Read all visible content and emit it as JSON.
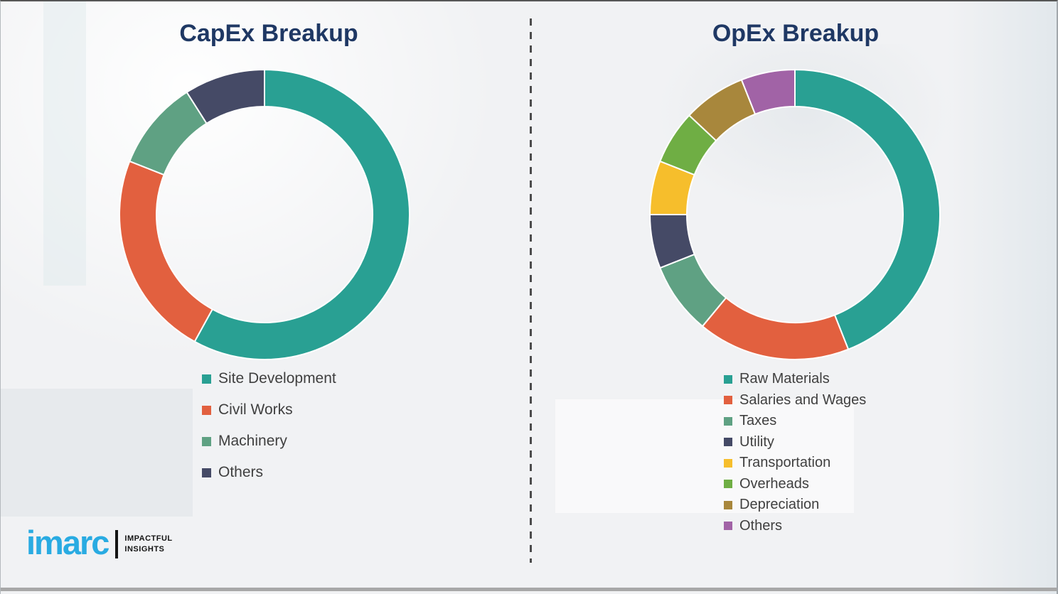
{
  "page": {
    "background_color": "#f1f2f4",
    "divider_style": "vertical-dashed",
    "title_color": "#1F3864"
  },
  "chart_data": [
    {
      "type": "pie",
      "variant": "donut",
      "title": "CapEx Breakup",
      "legend_position": "below-left",
      "segments": [
        {
          "label": "Site Development",
          "percent": 58,
          "color": "#29A093"
        },
        {
          "label": "Civil Works",
          "percent": 23,
          "color": "#E2603F"
        },
        {
          "label": "Machinery",
          "percent": 10,
          "color": "#5FA183"
        },
        {
          "label": "Others",
          "percent": 9,
          "color": "#454A66"
        }
      ]
    },
    {
      "type": "pie",
      "variant": "donut",
      "title": "OpEx Breakup",
      "legend_position": "below-left",
      "segments": [
        {
          "label": "Raw Materials",
          "percent": 44,
          "color": "#29A093"
        },
        {
          "label": "Salaries and Wages",
          "percent": 17,
          "color": "#E2603F"
        },
        {
          "label": "Taxes",
          "percent": 8,
          "color": "#5FA183"
        },
        {
          "label": "Utility",
          "percent": 6,
          "color": "#454A66"
        },
        {
          "label": "Transportation",
          "percent": 6,
          "color": "#F6BE2C"
        },
        {
          "label": "Overheads",
          "percent": 6,
          "color": "#6FAE44"
        },
        {
          "label": "Depreciation",
          "percent": 7,
          "color": "#A8873C"
        },
        {
          "label": "Others",
          "percent": 6,
          "color": "#A163A6"
        }
      ]
    }
  ],
  "logo": {
    "brand": "imarc",
    "brand_color": "#29ABE2",
    "tagline": [
      "IMPACTFUL",
      "INSIGHTS"
    ]
  }
}
